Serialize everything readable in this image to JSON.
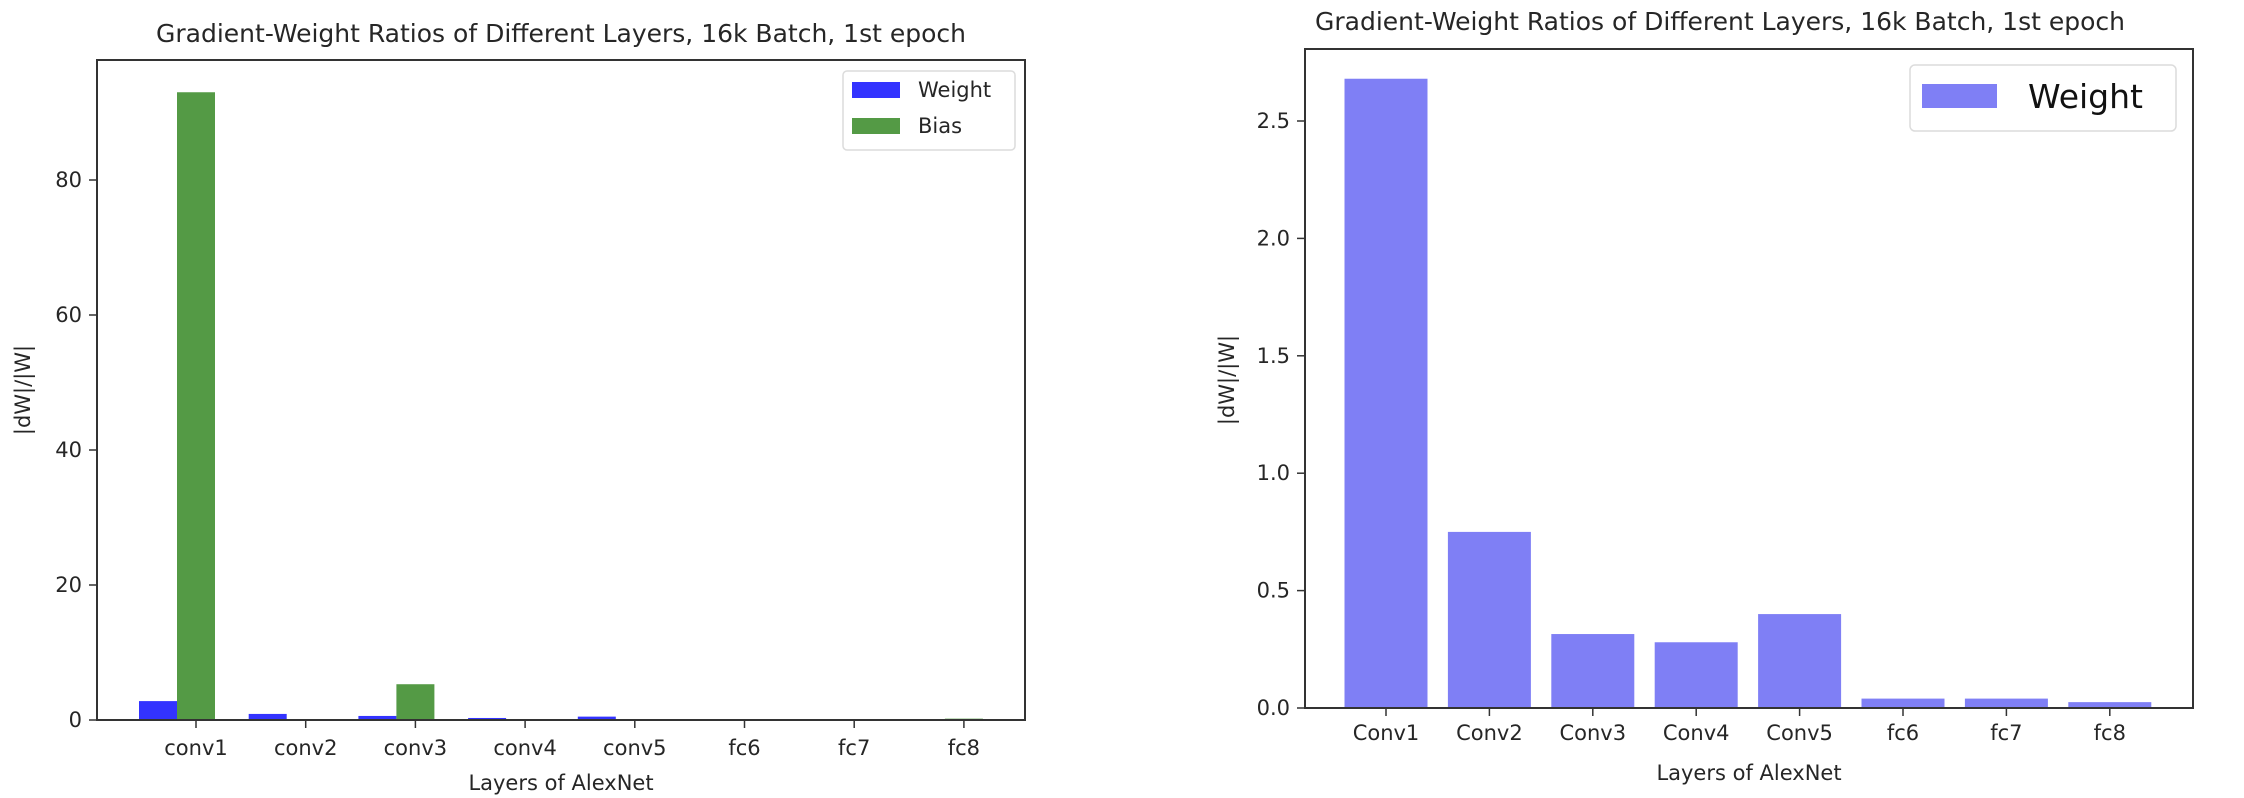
{
  "chart_data": [
    {
      "type": "bar",
      "title": "Gradient-Weight Ratios of Different Layers, 16k Batch, 1st epoch",
      "xlabel": "Layers of AlexNet",
      "ylabel": "|dW|/|W|",
      "categories": [
        "conv1",
        "conv2",
        "conv3",
        "conv4",
        "conv5",
        "fc6",
        "fc7",
        "fc8"
      ],
      "series": [
        {
          "name": "Weight",
          "color": "#3333ff",
          "values": [
            2.8,
            0.9,
            0.6,
            0.3,
            0.5,
            0.05,
            0.05,
            0.05
          ]
        },
        {
          "name": "Bias",
          "color": "#549a45",
          "values": [
            93.0,
            0.05,
            5.3,
            0.05,
            0.05,
            0.05,
            0.05,
            0.2
          ]
        }
      ],
      "yticks": [
        0,
        20,
        40,
        60,
        80
      ],
      "ylim": [
        0,
        97.8
      ],
      "grid": false,
      "legend_position": "upper right"
    },
    {
      "type": "bar",
      "title": "Gradient-Weight Ratios of Different Layers, 16k Batch, 1st epoch",
      "xlabel": "Layers of AlexNet",
      "ylabel": "|dW|/|W|",
      "categories": [
        "Conv1",
        "Conv2",
        "Conv3",
        "Conv4",
        "Conv5",
        "fc6",
        "fc7",
        "fc8"
      ],
      "series": [
        {
          "name": "Weight",
          "color": "#7f7ff5",
          "values": [
            2.68,
            0.75,
            0.315,
            0.28,
            0.4,
            0.04,
            0.04,
            0.025
          ]
        }
      ],
      "yticks": [
        "0.0",
        "0.5",
        "1.0",
        "1.5",
        "2.0",
        "2.5"
      ],
      "ylim": [
        0,
        2.81
      ],
      "grid": false,
      "legend_position": "upper right"
    }
  ],
  "left": {
    "title": "Gradient-Weight Ratios of Different Layers, 16k Batch, 1st epoch",
    "xlabel": "Layers of AlexNet",
    "ylabel": "|dW|/|W|",
    "legend": [
      "Weight",
      "Bias"
    ]
  },
  "right": {
    "title": "Gradient-Weight Ratios of Different Layers, 16k Batch, 1st epoch",
    "xlabel": "Layers of AlexNet",
    "ylabel": "|dW|/|W|",
    "legend": [
      "Weight"
    ]
  }
}
